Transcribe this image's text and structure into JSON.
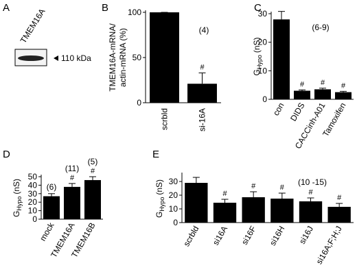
{
  "panel_A": {
    "label": "A",
    "column_label": "TMEM16A",
    "marker": "110 kDa"
  },
  "chart_data": [
    {
      "type": "bar",
      "label": "B",
      "ylabel": [
        "TMEM16A-mRNA/",
        "actin-mRNA (%)"
      ],
      "categories": [
        "scrbld",
        "si-16A"
      ],
      "values": [
        100,
        21
      ],
      "errors": [
        0,
        12
      ],
      "ylim": [
        0,
        100
      ],
      "yticks": [
        0,
        50,
        100
      ],
      "markers": [
        null,
        "#"
      ],
      "annotation": "(4)",
      "color": "#000000"
    },
    {
      "type": "bar",
      "label": "C",
      "ylabel": "G",
      "ylabel_sub": "Hypo",
      "ylabel_unit": "(nS)",
      "categories": [
        "con",
        "DIDS",
        "CACCinh-A01",
        "Tamoxifen"
      ],
      "values": [
        28,
        3,
        3.5,
        2.5
      ],
      "errors": [
        2.8,
        0.3,
        0.4,
        0.3
      ],
      "ylim": [
        0,
        30
      ],
      "yticks": [
        0,
        10,
        20,
        30
      ],
      "markers": [
        null,
        "#",
        "#",
        "#"
      ],
      "annotation": "(6-9)",
      "color": "#000000"
    },
    {
      "type": "bar",
      "label": "D",
      "ylabel": "G",
      "ylabel_sub": "Hypo",
      "ylabel_unit": "(nS)",
      "categories": [
        "mock",
        "TMEM16A",
        "TMEM16B"
      ],
      "values": [
        27,
        38,
        46
      ],
      "errors": [
        3,
        4,
        4
      ],
      "ylim": [
        0,
        50
      ],
      "yticks": [
        0,
        10,
        20,
        30,
        40,
        50
      ],
      "markers": [
        null,
        "#",
        "#"
      ],
      "counts": [
        "(6)",
        "(11)",
        "(5)"
      ],
      "color": "#000000"
    },
    {
      "type": "bar",
      "label": "E",
      "ylabel": "G",
      "ylabel_sub": "Hypo",
      "ylabel_unit": "(nS)",
      "categories": [
        "scrbld",
        "si16A",
        "si16F",
        "si16H",
        "si16J",
        "si16A;F;H;J"
      ],
      "values": [
        29,
        14.5,
        18.5,
        17.5,
        15.5,
        11.5
      ],
      "errors": [
        4,
        2.5,
        4,
        4,
        2.5,
        2.5
      ],
      "ylim": [
        0,
        35
      ],
      "yticks": [
        0,
        10,
        20,
        30
      ],
      "markers": [
        null,
        "#",
        "#",
        "#",
        "#",
        "#"
      ],
      "annotation": "(10 -15)",
      "color": "#000000"
    }
  ]
}
